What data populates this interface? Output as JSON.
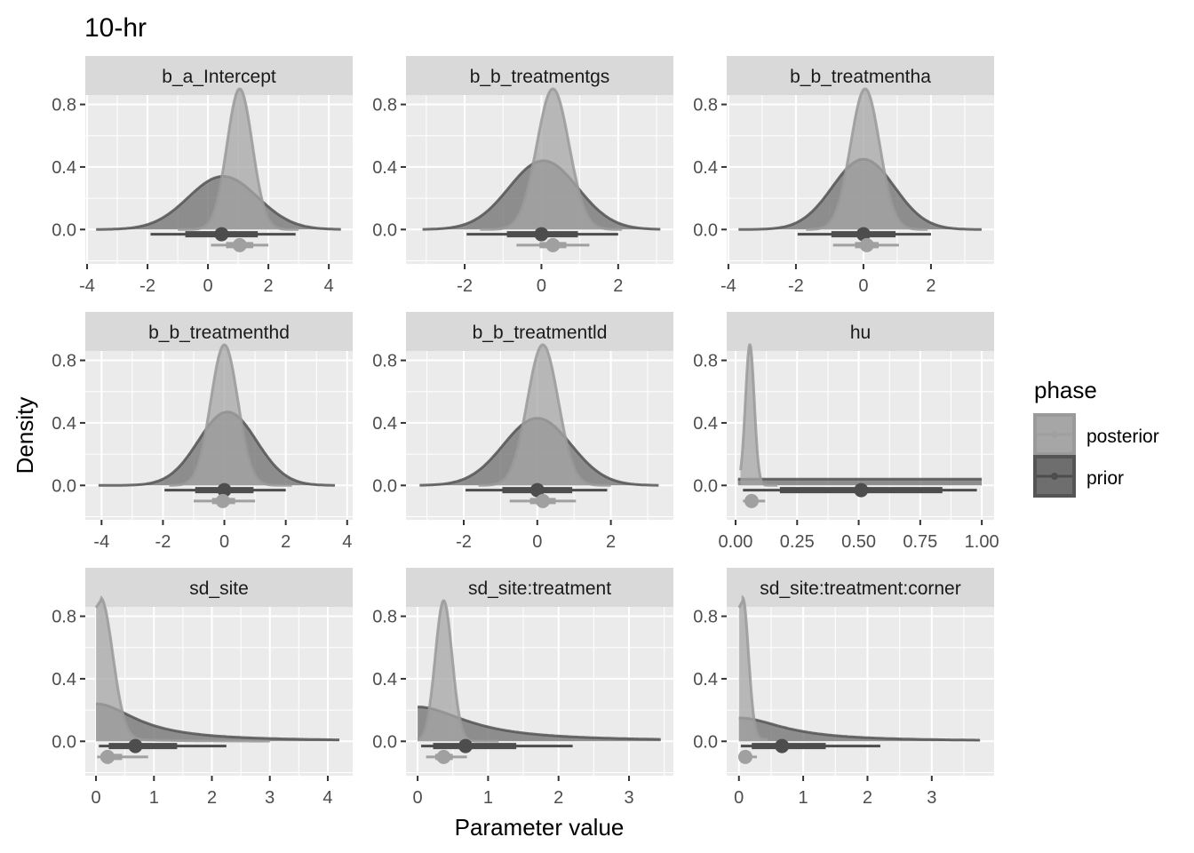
{
  "chart_data": {
    "type": "area",
    "title": "10-hr",
    "xlabel": "Parameter value",
    "ylabel": "Density",
    "legend": {
      "title": "phase",
      "placement": "right",
      "entries": [
        {
          "name": "posterior",
          "color": "#a6a6a6"
        },
        {
          "name": "prior",
          "color": "#555555"
        }
      ]
    },
    "y_ticks": [
      "0.0",
      "0.4",
      "0.8"
    ],
    "y_tick_values": [
      0.0,
      0.4,
      0.8
    ],
    "ylim": [
      -0.22,
      0.86
    ],
    "colors": {
      "panel_bg": "#ebebeb",
      "strip_bg": "#d9d9d9",
      "grid": "#ffffff",
      "posterior_fill": "#a6a6a6",
      "posterior_line": "#9a9a9a",
      "prior_fill": "#6e6e6e",
      "prior_line": "#555555",
      "prior_interval": "#4d4d4d",
      "posterior_interval": "#a0a0a0"
    },
    "panels": [
      {
        "name": "b_a_Intercept",
        "xlim": [
          -4.06,
          4.79
        ],
        "x_ticks": [
          -4,
          -2,
          0,
          2,
          4
        ],
        "x_tick_labels": [
          "-4",
          "-2",
          "0",
          "2",
          "4"
        ],
        "x_minor": [
          -3,
          -1,
          1,
          3
        ],
        "prior": {
          "kind": "normal",
          "mean": 0.5,
          "sd": 1.15,
          "peak": 0.34,
          "range": [
            -3.7,
            4.4
          ],
          "median": 0.45,
          "inner": [
            -0.75,
            1.65
          ],
          "outer": [
            -1.9,
            2.9
          ]
        },
        "posterior": {
          "kind": "normal",
          "mean": 1.05,
          "sd": 0.42,
          "peak": 0.9,
          "range": [
            -1.0,
            3.0
          ],
          "median": 1.05,
          "inner": [
            0.6,
            1.5
          ],
          "outer": [
            0.1,
            2.0
          ]
        }
      },
      {
        "name": "b_b_treatmentgs",
        "xlim": [
          -3.53,
          3.44
        ],
        "x_ticks": [
          -2,
          0,
          2
        ],
        "x_tick_labels": [
          "-2",
          "0",
          "2"
        ],
        "x_minor": [
          -3,
          -1,
          1,
          3
        ],
        "prior": {
          "kind": "normal",
          "mean": 0.05,
          "sd": 0.9,
          "peak": 0.44,
          "range": [
            -3.1,
            3.1
          ],
          "median": 0.0,
          "inner": [
            -0.9,
            0.95
          ],
          "outer": [
            -1.95,
            2.0
          ]
        },
        "posterior": {
          "kind": "normal",
          "mean": 0.3,
          "sd": 0.42,
          "peak": 0.9,
          "range": [
            -1.6,
            2.1
          ],
          "median": 0.3,
          "inner": [
            -0.05,
            0.65
          ],
          "outer": [
            -0.65,
            1.25
          ]
        }
      },
      {
        "name": "b_b_treatmentha",
        "xlim": [
          -4.05,
          3.87
        ],
        "x_ticks": [
          -4,
          -2,
          0,
          2
        ],
        "x_tick_labels": [
          "-4",
          "-2",
          "0",
          "2"
        ],
        "x_minor": [
          -3,
          -1,
          1,
          3
        ],
        "prior": {
          "kind": "normal",
          "mean": 0.0,
          "sd": 0.92,
          "peak": 0.45,
          "range": [
            -3.7,
            3.5
          ],
          "median": 0.0,
          "inner": [
            -0.95,
            0.95
          ],
          "outer": [
            -1.95,
            2.0
          ]
        },
        "posterior": {
          "kind": "normal",
          "mean": 0.05,
          "sd": 0.43,
          "peak": 0.9,
          "range": [
            -1.7,
            1.9
          ],
          "median": 0.1,
          "inner": [
            -0.25,
            0.45
          ],
          "outer": [
            -0.9,
            1.05
          ]
        }
      },
      {
        "name": "b_b_treatmenthd",
        "xlim": [
          -4.53,
          4.18
        ],
        "x_ticks": [
          -4,
          -2,
          0,
          2,
          4
        ],
        "x_tick_labels": [
          "-4",
          "-2",
          "0",
          "2",
          "4"
        ],
        "x_minor": [
          -3,
          -1,
          1,
          3
        ],
        "prior": {
          "kind": "normal",
          "mean": 0.1,
          "sd": 0.95,
          "peak": 0.47,
          "range": [
            -4.1,
            3.6
          ],
          "median": 0.0,
          "inner": [
            -0.95,
            0.95
          ],
          "outer": [
            -1.95,
            2.0
          ]
        },
        "posterior": {
          "kind": "normal",
          "mean": 0.0,
          "sd": 0.44,
          "peak": 0.9,
          "range": [
            -1.8,
            2.2
          ],
          "median": -0.05,
          "inner": [
            -0.4,
            0.35
          ],
          "outer": [
            -1.0,
            1.0
          ]
        }
      },
      {
        "name": "b_b_treatmentld",
        "xlim": [
          -3.57,
          3.7
        ],
        "x_ticks": [
          -2,
          0,
          2
        ],
        "x_tick_labels": [
          "-2",
          "0",
          "2"
        ],
        "x_minor": [
          -3,
          -1,
          1,
          3
        ],
        "prior": {
          "kind": "normal",
          "mean": 0.0,
          "sd": 0.92,
          "peak": 0.43,
          "range": [
            -3.2,
            3.3
          ],
          "median": 0.0,
          "inner": [
            -0.95,
            0.95
          ],
          "outer": [
            -1.95,
            1.9
          ]
        },
        "posterior": {
          "kind": "normal",
          "mean": 0.15,
          "sd": 0.42,
          "peak": 0.9,
          "range": [
            -1.6,
            2.0
          ],
          "median": 0.15,
          "inner": [
            -0.2,
            0.5
          ],
          "outer": [
            -0.75,
            1.05
          ]
        }
      },
      {
        "name": "hu",
        "xlim": [
          -0.036,
          1.05
        ],
        "x_ticks": [
          0,
          0.25,
          0.5,
          0.75,
          1.0
        ],
        "x_tick_labels": [
          "0.00",
          "0.25",
          "0.50",
          "0.75",
          "1.00"
        ],
        "x_minor": [
          0.125,
          0.375,
          0.625,
          0.875
        ],
        "prior": {
          "kind": "uniform",
          "peak": 0.04,
          "range": [
            0.01,
            1.0
          ],
          "median": 0.51,
          "inner": [
            0.18,
            0.84
          ],
          "outer": [
            0.03,
            0.98
          ]
        },
        "posterior": {
          "kind": "normal",
          "mean": 0.058,
          "sd": 0.018,
          "peak": 0.9,
          "range": [
            0.02,
            0.17
          ],
          "median": 0.065,
          "inner": [
            0.045,
            0.085
          ],
          "outer": [
            0.03,
            0.12
          ]
        }
      },
      {
        "name": "sd_site",
        "xlim": [
          -0.185,
          4.43
        ],
        "x_ticks": [
          0,
          1,
          2,
          3,
          4
        ],
        "x_tick_labels": [
          "0",
          "1",
          "2",
          "3",
          "4"
        ],
        "x_minor": [
          0.5,
          1.5,
          2.5,
          3.5
        ],
        "prior": {
          "kind": "halfcauchy",
          "scale": 0.85,
          "peak": 0.24,
          "range": [
            0.0,
            4.2
          ],
          "median": 0.68,
          "inner": [
            0.22,
            1.4
          ],
          "outer": [
            0.05,
            2.25
          ]
        },
        "posterior": {
          "kind": "skew",
          "mode": 0.08,
          "scale": 0.28,
          "peak": 0.9,
          "range": [
            0.0,
            3.0
          ],
          "median": 0.2,
          "inner": [
            0.08,
            0.45
          ],
          "outer": [
            0.02,
            0.9
          ]
        }
      },
      {
        "name": "sd_site:treatment",
        "xlim": [
          -0.165,
          3.63
        ],
        "x_ticks": [
          0,
          1,
          2,
          3
        ],
        "x_tick_labels": [
          "0",
          "1",
          "2",
          "3"
        ],
        "x_minor": [
          0.5,
          1.5,
          2.5,
          3.5
        ],
        "prior": {
          "kind": "halfcauchy",
          "scale": 0.85,
          "peak": 0.22,
          "range": [
            0.0,
            3.45
          ],
          "median": 0.68,
          "inner": [
            0.22,
            1.4
          ],
          "outer": [
            0.05,
            2.2
          ]
        },
        "posterior": {
          "kind": "normal",
          "mean": 0.37,
          "sd": 0.12,
          "peak": 0.9,
          "range": [
            0.0,
            1.15
          ],
          "median": 0.37,
          "inner": [
            0.25,
            0.5
          ],
          "outer": [
            0.12,
            0.7
          ]
        }
      },
      {
        "name": "sd_site:treatment:corner",
        "xlim": [
          -0.19,
          3.97
        ],
        "x_ticks": [
          0,
          1,
          2,
          3
        ],
        "x_tick_labels": [
          "0",
          "1",
          "2",
          "3"
        ],
        "x_minor": [
          0.5,
          1.5,
          2.5,
          3.5
        ],
        "prior": {
          "kind": "halfcauchy",
          "scale": 0.85,
          "peak": 0.15,
          "range": [
            0.0,
            3.75
          ],
          "median": 0.67,
          "inner": [
            0.2,
            1.35
          ],
          "outer": [
            0.03,
            2.2
          ]
        },
        "posterior": {
          "kind": "skew",
          "mode": 0.06,
          "scale": 0.12,
          "peak": 0.9,
          "range": [
            0.0,
            0.45
          ],
          "median": 0.1,
          "inner": [
            0.05,
            0.18
          ],
          "outer": [
            0.02,
            0.28
          ]
        }
      }
    ]
  }
}
